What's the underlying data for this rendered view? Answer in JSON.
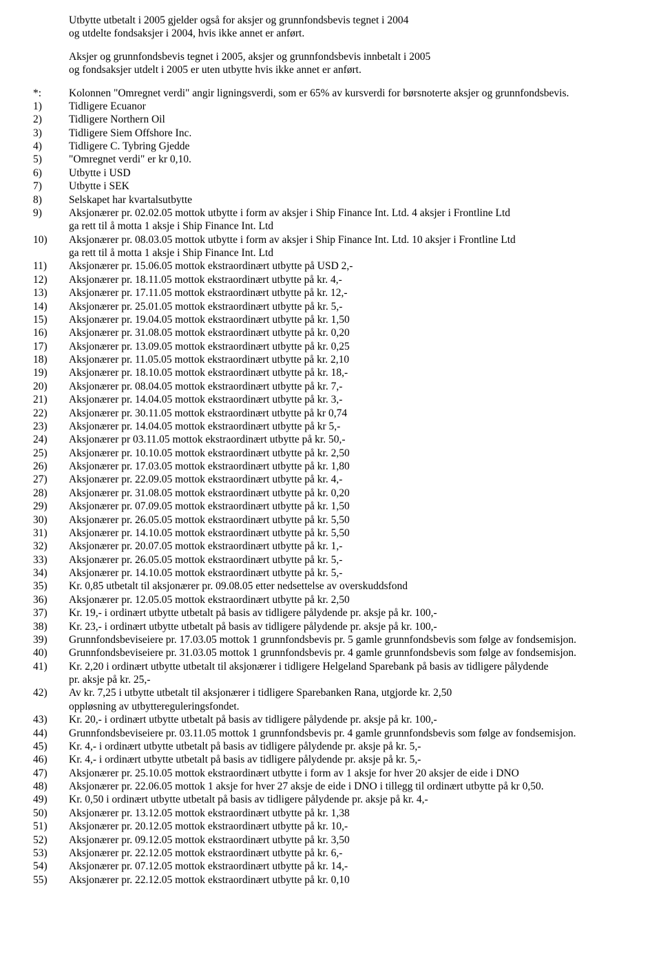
{
  "intro": {
    "p1a": "Utbytte utbetalt i 2005 gjelder også for aksjer og grunnfondsbevis tegnet i 2004",
    "p1b": "og utdelte fondsaksjer i 2004, hvis ikke annet er anført.",
    "p2a": "Aksjer og grunnfondsbevis tegnet i 2005, aksjer og grunnfondsbevis innbetalt i 2005",
    "p2b": "og fondsaksjer utdelt i 2005 er uten utbytte hvis ikke annet er anført."
  },
  "star": {
    "marker": "*:",
    "text": "Kolonnen \"Omregnet verdi\" angir ligningsverdi, som er 65% av kursverdi for børsnoterte aksjer og grunnfondsbevis."
  },
  "notes": [
    {
      "m": "1)",
      "t": "Tidligere Ecuanor"
    },
    {
      "m": "2)",
      "t": "Tidligere Northern Oil"
    },
    {
      "m": "3)",
      "t": "Tidligere Siem Offshore Inc."
    },
    {
      "m": "4)",
      "t": "Tidligere C. Tybring Gjedde"
    },
    {
      "m": "5)",
      "t": "\"Omregnet verdi\" er kr 0,10."
    },
    {
      "m": "6)",
      "t": "Utbytte i USD"
    },
    {
      "m": "7)",
      "t": "Utbytte i SEK"
    },
    {
      "m": "8)",
      "t": "Selskapet har kvartalsutbytte"
    },
    {
      "m": "9)",
      "t": "Aksjonærer pr. 02.02.05 mottok utbytte i form av aksjer i Ship Finance Int. Ltd. 4 aksjer i Frontline Ltd",
      "t2": "ga rett til å motta 1 aksje i Ship Finance Int. Ltd"
    },
    {
      "m": "10)",
      "t": "Aksjonærer pr. 08.03.05 mottok utbytte i form av aksjer i Ship Finance Int. Ltd. 10 aksjer i Frontline Ltd",
      "t2": "ga rett til å motta 1 aksje i Ship Finance Int. Ltd"
    },
    {
      "m": "11)",
      "t": "Aksjonærer pr. 15.06.05 mottok ekstraordinært utbytte på USD 2,-"
    },
    {
      "m": "12)",
      "t": "Aksjonærer pr. 18.11.05 mottok ekstraordinært utbytte på kr. 4,-"
    },
    {
      "m": "13)",
      "t": "Aksjonærer pr. 17.11.05 mottok ekstraordinært utbytte på kr. 12,-"
    },
    {
      "m": "14)",
      "t": "Aksjonærer pr. 25.01.05 mottok ekstraordinært utbytte på kr. 5,-"
    },
    {
      "m": "15)",
      "t": "Aksjonærer pr. 19.04.05 mottok ekstraordinært utbytte på kr. 1,50"
    },
    {
      "m": "16)",
      "t": "Aksjonærer pr. 31.08.05 mottok ekstraordinært utbytte på kr. 0,20"
    },
    {
      "m": "17)",
      "t": "Aksjonærer pr. 13.09.05 mottok ekstraordinært utbytte på kr. 0,25"
    },
    {
      "m": "18)",
      "t": "Aksjonærer pr. 11.05.05 mottok ekstraordinært utbytte på kr. 2,10"
    },
    {
      "m": "19)",
      "t": "Aksjonærer pr. 18.10.05 mottok ekstraordinært utbytte på kr. 18,-"
    },
    {
      "m": "20)",
      "t": "Aksjonærer pr. 08.04.05 mottok ekstraordinært utbytte på kr. 7,-"
    },
    {
      "m": "21)",
      "t": "Aksjonærer pr. 14.04.05 mottok ekstraordinært utbytte på kr. 3,-"
    },
    {
      "m": "22)",
      "t": "Aksjonærer pr. 30.11.05 mottok ekstraordinært utbytte på kr 0,74"
    },
    {
      "m": "23)",
      "t": "Aksjonærer pr. 14.04.05 mottok ekstraordinært utbytte på kr 5,-"
    },
    {
      "m": "24)",
      "t": "Aksjonærer pr 03.11.05 mottok ekstraordinært utbytte på kr. 50,-"
    },
    {
      "m": "25)",
      "t": "Aksjonærer pr. 10.10.05 mottok ekstraordinært utbytte på kr. 2,50"
    },
    {
      "m": "26)",
      "t": "Aksjonærer pr. 17.03.05 mottok ekstraordinært utbytte på kr. 1,80"
    },
    {
      "m": "27)",
      "t": "Aksjonærer pr. 22.09.05 mottok ekstraordinært utbytte på kr. 4,-"
    },
    {
      "m": "28)",
      "t": "Aksjonærer pr. 31.08.05 mottok ekstraordinært utbytte på kr. 0,20"
    },
    {
      "m": "29)",
      "t": "Aksjonærer pr. 07.09.05 mottok ekstraordinært utbytte på kr. 1,50"
    },
    {
      "m": "30)",
      "t": "Aksjonærer pr. 26.05.05 mottok ekstraordinært utbytte på kr. 5,50"
    },
    {
      "m": "31)",
      "t": "Aksjonærer pr. 14.10.05 mottok ekstraordinært utbytte på kr. 5,50"
    },
    {
      "m": "32)",
      "t": "Aksjonærer pr. 20.07.05 mottok ekstraordinært utbytte på kr. 1,-"
    },
    {
      "m": "33)",
      "t": "Aksjonærer pr. 26.05.05 mottok ekstraordinært utbytte på kr. 5,-"
    },
    {
      "m": "34)",
      "t": "Aksjonærer pr. 14.10.05 mottok ekstraordinært utbytte på kr. 5,-"
    },
    {
      "m": "35)",
      "t": "Kr. 0,85 utbetalt til aksjonærer pr. 09.08.05 etter nedsettelse av overskuddsfond"
    },
    {
      "m": "36)",
      "t": "Aksjonærer pr. 12.05.05 mottok ekstraordinært utbytte på kr. 2,50"
    },
    {
      "m": "37)",
      "t": "Kr. 19,- i ordinært utbytte utbetalt på basis av tidligere pålydende pr. aksje på kr. 100,-"
    },
    {
      "m": "38)",
      "t": "Kr. 23,- i ordinært utbytte utbetalt på basis av tidligere pålydende pr. aksje på kr. 100,-"
    },
    {
      "m": "39)",
      "t": "Grunnfondsbeviseiere pr. 17.03.05 mottok 1 grunnfondsbevis pr. 5 gamle grunnfondsbevis som følge av fondsemisjon."
    },
    {
      "m": "40)",
      "t": "Grunnfondsbeviseiere pr. 31.03.05 mottok 1 grunnfondsbevis pr. 4 gamle grunnfondsbevis som følge av fondsemisjon."
    },
    {
      "m": "41)",
      "t": "Kr. 2,20 i ordinært utbytte utbetalt til aksjonærer i tidligere Helgeland Sparebank på basis av tidligere pålydende",
      "t2": "pr. aksje på kr. 25,-"
    },
    {
      "m": "42)",
      "t": "Av kr. 7,25 i utbytte utbetalt til aksjonærer i tidligere Sparebanken Rana, utgjorde kr. 2,50",
      "t2": "oppløsning av utbyttereguleringsfondet."
    },
    {
      "m": "43)",
      "t": "Kr. 20,- i ordinært utbytte utbetalt på basis av tidligere pålydende pr. aksje på kr. 100,-"
    },
    {
      "m": "44)",
      "t": "Grunnfondsbeviseiere pr. 03.11.05 mottok 1 grunnfondsbevis pr. 4 gamle grunnfondsbevis som følge av fondsemisjon."
    },
    {
      "m": "45)",
      "t": "Kr. 4,- i ordinært utbytte utbetalt på basis av tidligere pålydende pr. aksje på kr. 5,-"
    },
    {
      "m": "46)",
      "t": "Kr. 4,- i ordinært utbytte utbetalt på basis av tidligere pålydende pr. aksje på kr. 5,-"
    },
    {
      "m": "47)",
      "t": "Aksjonærer pr. 25.10.05 mottok ekstraordinært utbytte i form av 1 aksje for hver 20 aksjer de eide i DNO"
    },
    {
      "m": "48)",
      "t": "Aksjonærer pr. 22.06.05 mottok 1 aksje for hver 27 aksje de eide i DNO i tillegg til ordinært utbytte på kr 0,50."
    },
    {
      "m": "49)",
      "t": "Kr. 0,50 i ordinært utbytte utbetalt på basis av tidligere pålydende pr. aksje på kr. 4,-"
    },
    {
      "m": "50)",
      "t": "Aksjonærer pr. 13.12.05 mottok ekstraordinært utbytte på kr. 1,38"
    },
    {
      "m": "51)",
      "t": "Aksjonærer pr. 20.12.05 mottok ekstraordinært utbytte på kr. 10,-"
    },
    {
      "m": "52)",
      "t": "Aksjonærer pr. 09.12.05 mottok ekstraordinært utbytte på kr. 3,50"
    },
    {
      "m": "53)",
      "t": "Aksjonærer pr. 22.12.05 mottok ekstraordinært utbytte på kr. 6,-"
    },
    {
      "m": "54)",
      "t": "Aksjonærer pr. 07.12.05 mottok ekstraordinært utbytte på kr. 14,-"
    },
    {
      "m": "55)",
      "t": "Aksjonærer pr. 22.12.05 mottok ekstraordinært utbytte på kr. 0,10"
    }
  ]
}
